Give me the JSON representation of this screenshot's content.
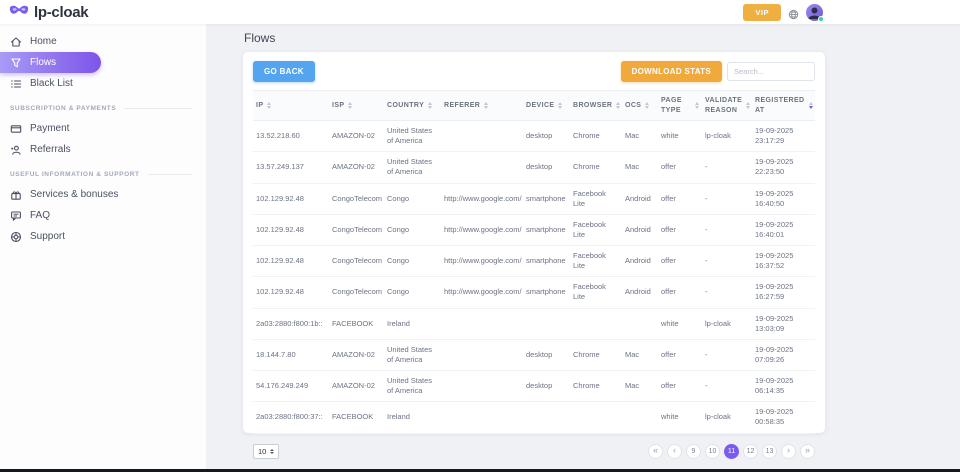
{
  "header": {
    "logo_text": "lp-cloak",
    "vip_label": "VIP"
  },
  "page": {
    "title": "Flows",
    "go_back_label": "GO BACK",
    "download_stats_label": "DOWNLOAD STATS",
    "search_placeholder": "Search..."
  },
  "sidebar": {
    "groups": [
      {
        "title": "",
        "items": [
          {
            "label": "Home",
            "icon": "home",
            "active": false
          },
          {
            "label": "Flows",
            "icon": "flows",
            "active": true
          },
          {
            "label": "Black List",
            "icon": "black-list",
            "active": false
          }
        ]
      },
      {
        "title": "SUBSCRIPTION & PAYMENTS",
        "items": [
          {
            "label": "Payment",
            "icon": "payment",
            "active": false
          },
          {
            "label": "Referrals",
            "icon": "referrals",
            "active": false
          }
        ]
      },
      {
        "title": "USEFUL INFORMATION & SUPPORT",
        "items": [
          {
            "label": "Services & bonuses",
            "icon": "services",
            "active": false
          },
          {
            "label": "FAQ",
            "icon": "faq",
            "active": false
          },
          {
            "label": "Support",
            "icon": "support",
            "active": false
          }
        ]
      }
    ]
  },
  "table": {
    "columns": [
      {
        "label": "IP",
        "sorted": ""
      },
      {
        "label": "ISP",
        "sorted": ""
      },
      {
        "label": "COUNTRY",
        "sorted": ""
      },
      {
        "label": "REFERER",
        "sorted": ""
      },
      {
        "label": "DEVICE",
        "sorted": ""
      },
      {
        "label": "BROWSER",
        "sorted": ""
      },
      {
        "label": "OCS",
        "sorted": ""
      },
      {
        "label": "PAGE TYPE",
        "sorted": ""
      },
      {
        "label": "VALIDATE REASON",
        "sorted": ""
      },
      {
        "label": "REGISTERED AT",
        "sorted": "desc"
      }
    ],
    "rows": [
      [
        "13.52.218.60",
        "AMAZON-02",
        "United States of America",
        "",
        "desktop",
        "Chrome",
        "Mac",
        "white",
        "lp-cloak",
        "19-09-2025 23:17:29"
      ],
      [
        "13.57.249.137",
        "AMAZON-02",
        "United States of America",
        "",
        "desktop",
        "Chrome",
        "Mac",
        "offer",
        "-",
        "19-09-2025 22:23:50"
      ],
      [
        "102.129.92.48",
        "CongoTelecom",
        "Congo",
        "http://www.google.com/",
        "smartphone",
        "Facebook Lite",
        "Android",
        "offer",
        "-",
        "19-09-2025 16:40:50"
      ],
      [
        "102.129.92.48",
        "CongoTelecom",
        "Congo",
        "http://www.google.com/",
        "smartphone",
        "Facebook Lite",
        "Android",
        "offer",
        "-",
        "19-09-2025 16:40:01"
      ],
      [
        "102.129.92.48",
        "CongoTelecom",
        "Congo",
        "http://www.google.com/",
        "smartphone",
        "Facebook Lite",
        "Android",
        "offer",
        "-",
        "19-09-2025 16:37:52"
      ],
      [
        "102.129.92.48",
        "CongoTelecom",
        "Congo",
        "http://www.google.com/",
        "smartphone",
        "Facebook Lite",
        "Android",
        "offer",
        "-",
        "19-09-2025 16:27:59"
      ],
      [
        "2a03:2880:f800:1b::",
        "FACEBOOK",
        "Ireland",
        "",
        "",
        "",
        "",
        "white",
        "lp-cloak",
        "19-09-2025 13:03:09"
      ],
      [
        "18.144.7.80",
        "AMAZON-02",
        "United States of America",
        "",
        "desktop",
        "Chrome",
        "Mac",
        "offer",
        "-",
        "19-09-2025 07:09:26"
      ],
      [
        "54.176.249.249",
        "AMAZON-02",
        "United States of America",
        "",
        "desktop",
        "Chrome",
        "Mac",
        "offer",
        "-",
        "19-09-2025 06:14:35"
      ],
      [
        "2a03:2880:f800:37::",
        "FACEBOOK",
        "Ireland",
        "",
        "",
        "",
        "",
        "white",
        "lp-cloak",
        "19-09-2025 00:58:35"
      ]
    ]
  },
  "footer": {
    "per_page": "10",
    "pagination": {
      "first": "«",
      "prev": "‹",
      "pages": [
        "9",
        "10",
        "11",
        "12",
        "13"
      ],
      "active": "11",
      "next": "›",
      "last": "»"
    }
  },
  "colors": {
    "accent_purple": "#7e55e8",
    "active_page_purple": "#7c5cf0",
    "go_back_blue": "#55a4ef",
    "download_orange": "#f0a93c",
    "vip_orange": "#f0b041",
    "online_green": "#3ad29f"
  }
}
